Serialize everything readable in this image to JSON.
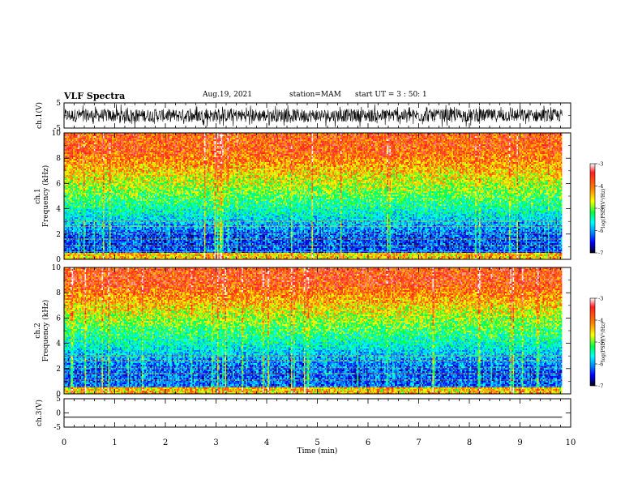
{
  "header": {
    "title": "VLF Spectra",
    "date": "Aug.19, 2021",
    "station": "station=MAM",
    "start": "start  UT  =   3  : 50: 1"
  },
  "colorbar": {
    "label": "log(PSD)(V²/Hz)",
    "ticks": [
      "-3",
      "-4",
      "-5",
      "-6",
      "-7"
    ],
    "colors": [
      "#ffffff",
      "#ff0000",
      "#ff8000",
      "#ffff00",
      "#00ff00",
      "#00ffff",
      "#0080ff",
      "#0000ff",
      "#000080",
      "#000000"
    ]
  },
  "chart_data": [
    {
      "type": "line",
      "panel": "ch1-waveform",
      "ylabel": "ch.1(V)",
      "ylim": [
        -5,
        5
      ],
      "ytick_labels": [
        "5",
        "-5"
      ],
      "x": [
        0,
        10
      ],
      "description_values": "dense noisy VLF waveform spanning roughly -3 to +3 V over the whole 0–9.8 min record"
    },
    {
      "type": "heatmap",
      "panel": "ch1-spectrogram",
      "ylabel": "ch.1 Frequency (kHz)",
      "ylim": [
        0,
        10
      ],
      "ytick_labels": [
        "0",
        "2",
        "4",
        "6",
        "8",
        "10"
      ],
      "x": [
        0,
        9.83
      ],
      "z_range": [
        -7,
        -3
      ],
      "band_values": [
        {
          "freq_kHz": [
            0.5,
            3.0
          ],
          "logPSD": -6.3
        },
        {
          "freq_kHz": [
            3.0,
            4.5
          ],
          "logPSD": -5.5
        },
        {
          "freq_kHz": [
            4.5,
            7.0
          ],
          "logPSD": -4.8
        },
        {
          "freq_kHz": [
            7.0,
            10.0
          ],
          "logPSD": -3.9
        }
      ]
    },
    {
      "type": "heatmap",
      "panel": "ch2-spectrogram",
      "ylabel": "ch.2 Frequency (kHz)",
      "ylim": [
        0,
        10
      ],
      "ytick_labels": [
        "0",
        "2",
        "4",
        "6",
        "8",
        "10"
      ],
      "x": [
        0,
        9.83
      ],
      "z_range": [
        -7,
        -3
      ],
      "band_values": [
        {
          "freq_kHz": [
            0.5,
            3.5
          ],
          "logPSD": -6.2
        },
        {
          "freq_kHz": [
            3.5,
            5.0
          ],
          "logPSD": -5.4
        },
        {
          "freq_kHz": [
            5.0,
            7.5
          ],
          "logPSD": -4.7
        },
        {
          "freq_kHz": [
            7.5,
            10.0
          ],
          "logPSD": -3.8
        }
      ]
    },
    {
      "type": "line",
      "panel": "ch3-waveform",
      "ylabel": "ch.3(V)",
      "ylim": [
        -5,
        5
      ],
      "ytick_labels": [
        "5",
        "0",
        "-5"
      ],
      "x": [
        0,
        9.83
      ],
      "y": [
        -1.5,
        -1.5
      ]
    }
  ],
  "xaxis": {
    "label": "Time  (min)",
    "ticks": [
      "0",
      "1",
      "2",
      "3",
      "4",
      "5",
      "6",
      "7",
      "8",
      "9",
      "10"
    ],
    "xlim": [
      0,
      10
    ]
  }
}
